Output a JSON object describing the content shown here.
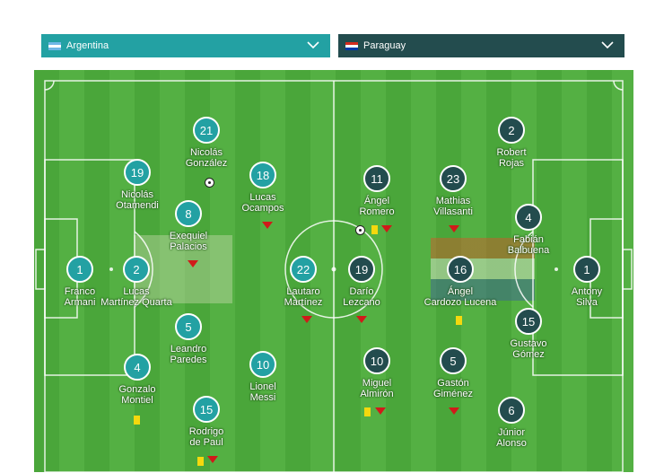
{
  "selectors": {
    "home": {
      "team": "Argentina",
      "flag": "argentina-flag",
      "color": "#23a1a3"
    },
    "away": {
      "team": "Paraguay",
      "flag": "paraguay-flag",
      "color": "#234c4e"
    }
  },
  "players": [
    {
      "id": "h1",
      "side": "home",
      "number": "1",
      "name1": "Franco",
      "name2": "Armani"
    },
    {
      "id": "h2",
      "side": "home",
      "number": "2",
      "name1": "Lucas",
      "name2": "Martínez Quarta"
    },
    {
      "id": "h3",
      "side": "home",
      "number": "19",
      "name1": "Nicolás",
      "name2": "Otamendi"
    },
    {
      "id": "h4",
      "side": "home",
      "number": "4",
      "name1": "Gonzalo",
      "name2": "Montiel"
    },
    {
      "id": "h5",
      "side": "home",
      "number": "21",
      "name1": "Nicolás",
      "name2": "González"
    },
    {
      "id": "h6",
      "side": "home",
      "number": "8",
      "name1": "Exequiel",
      "name2": "Palacios"
    },
    {
      "id": "h7",
      "side": "home",
      "number": "5",
      "name1": "Leandro",
      "name2": "Paredes"
    },
    {
      "id": "h8",
      "side": "home",
      "number": "15",
      "name1": "Rodrigo",
      "name2": "de Paul"
    },
    {
      "id": "h9",
      "side": "home",
      "number": "18",
      "name1": "Lucas",
      "name2": "Ocampos"
    },
    {
      "id": "h10",
      "side": "home",
      "number": "10",
      "name1": "Lionel",
      "name2": "Messi"
    },
    {
      "id": "h11",
      "side": "home",
      "number": "22",
      "name1": "Lautaro",
      "name2": "Martínez"
    },
    {
      "id": "a1",
      "side": "away",
      "number": "1",
      "name1": "Antony",
      "name2": "Silva"
    },
    {
      "id": "a2",
      "side": "away",
      "number": "2",
      "name1": "Robert",
      "name2": "Rojas"
    },
    {
      "id": "a3",
      "side": "away",
      "number": "4",
      "name1": "Fabián",
      "name2": "Balbuena"
    },
    {
      "id": "a4",
      "side": "away",
      "number": "15",
      "name1": "Gustavo",
      "name2": "Gómez"
    },
    {
      "id": "a5",
      "side": "away",
      "number": "6",
      "name1": "Júnior",
      "name2": "Alonso"
    },
    {
      "id": "a6",
      "side": "away",
      "number": "23",
      "name1": "Mathias",
      "name2": "Villasanti"
    },
    {
      "id": "a7",
      "side": "away",
      "number": "16",
      "name1": "Ángel",
      "name2": "Cardozo Lucena"
    },
    {
      "id": "a8",
      "side": "away",
      "number": "5",
      "name1": "Gastón",
      "name2": "Giménez"
    },
    {
      "id": "a9",
      "side": "away",
      "number": "11",
      "name1": "Ángel",
      "name2": "Romero"
    },
    {
      "id": "a10",
      "side": "away",
      "number": "10",
      "name1": "Miguel",
      "name2": "Almirón"
    },
    {
      "id": "a11",
      "side": "away",
      "number": "19",
      "name1": "Darío",
      "name2": "Lezcano"
    }
  ]
}
